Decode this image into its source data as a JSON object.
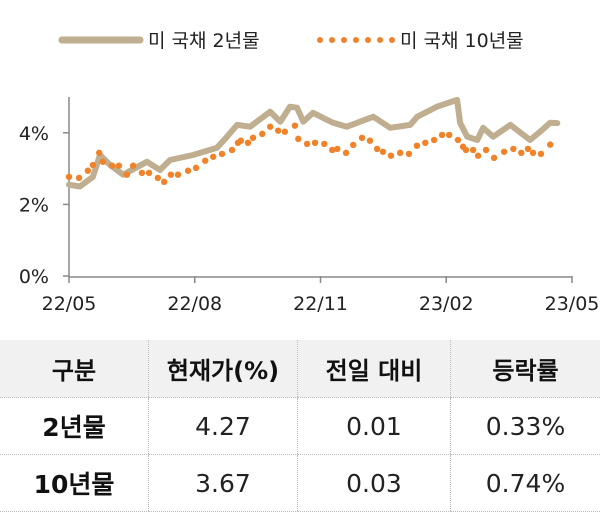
{
  "chart_data": {
    "type": "line",
    "title": "",
    "xlabel": "",
    "ylabel": "",
    "x_unit": "months since 22/05",
    "x_ticks": [
      "22/05",
      "22/08",
      "22/11",
      "23/02",
      "23/05"
    ],
    "x_tick_positions": [
      0,
      3,
      6,
      9,
      12
    ],
    "y_ticks": [
      "0%",
      "2%",
      "4%"
    ],
    "y_tick_values": [
      0,
      2,
      4
    ],
    "ylim": [
      0,
      5
    ],
    "xlim": [
      0,
      12
    ],
    "grid": false,
    "legend_position": "top",
    "series": [
      {
        "name": "미 국채 2년물",
        "style": "line",
        "color": "#bfae8f",
        "x": [
          0,
          0.26,
          0.57,
          0.74,
          0.98,
          1.29,
          1.86,
          2.17,
          2.41,
          2.96,
          3.53,
          3.77,
          4.01,
          4.32,
          4.8,
          5.04,
          5.27,
          5.44,
          5.59,
          5.82,
          6.3,
          6.63,
          7.26,
          7.66,
          8.14,
          8.31,
          8.78,
          9.26,
          9.33,
          9.5,
          9.74,
          9.88,
          10.12,
          10.53,
          11.0,
          11.24,
          11.48,
          11.65
        ],
        "y": [
          2.55,
          2.5,
          2.77,
          3.38,
          3.1,
          2.83,
          3.19,
          2.96,
          3.24,
          3.38,
          3.58,
          3.89,
          4.22,
          4.17,
          4.59,
          4.31,
          4.73,
          4.7,
          4.31,
          4.56,
          4.28,
          4.17,
          4.45,
          4.14,
          4.22,
          4.45,
          4.73,
          4.92,
          4.28,
          3.89,
          3.8,
          4.14,
          3.89,
          4.22,
          3.8,
          4.03,
          4.28,
          4.27
        ]
      },
      {
        "name": "미 국채 10년물",
        "style": "dots",
        "color": "#f0822a",
        "x": [
          0,
          0.24,
          0.45,
          0.57,
          0.72,
          0.81,
          1.03,
          1.19,
          1.38,
          1.53,
          1.74,
          1.91,
          2.12,
          2.27,
          2.43,
          2.6,
          2.84,
          3.03,
          3.25,
          3.44,
          3.65,
          3.89,
          4.03,
          4.1,
          4.27,
          4.39,
          4.61,
          4.8,
          4.99,
          5.15,
          5.39,
          5.47,
          5.68,
          5.87,
          6.09,
          6.28,
          6.4,
          6.61,
          6.78,
          6.99,
          7.18,
          7.35,
          7.49,
          7.68,
          7.9,
          8.11,
          8.3,
          8.5,
          8.71,
          8.9,
          9.07,
          9.28,
          9.4,
          9.47,
          9.64,
          9.76,
          9.95,
          10.14,
          10.38,
          10.6,
          10.79,
          10.95,
          11.07,
          11.26,
          11.48
        ],
        "y": [
          2.77,
          2.74,
          2.94,
          3.1,
          3.44,
          3.19,
          3.08,
          3.08,
          2.83,
          3.08,
          2.88,
          2.88,
          2.74,
          2.63,
          2.83,
          2.83,
          2.94,
          3.02,
          3.22,
          3.33,
          3.41,
          3.52,
          3.72,
          3.78,
          3.72,
          3.86,
          3.97,
          4.17,
          4.06,
          4.03,
          4.2,
          3.83,
          3.69,
          3.72,
          3.69,
          3.52,
          3.55,
          3.44,
          3.66,
          3.86,
          3.78,
          3.55,
          3.47,
          3.36,
          3.44,
          3.41,
          3.64,
          3.72,
          3.8,
          3.94,
          3.94,
          3.8,
          3.61,
          3.52,
          3.52,
          3.36,
          3.52,
          3.3,
          3.47,
          3.55,
          3.44,
          3.55,
          3.44,
          3.41,
          3.67
        ]
      }
    ]
  },
  "table": {
    "headers": [
      "구분",
      "현재가(%)",
      "전일 대비",
      "등락률"
    ],
    "rows": [
      [
        "2년물",
        "4.27",
        "0.01",
        "0.33%"
      ],
      [
        "10년물",
        "3.67",
        "0.03",
        "0.74%"
      ]
    ]
  }
}
